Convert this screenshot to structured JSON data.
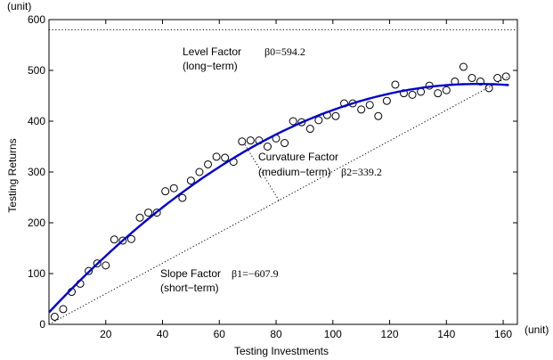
{
  "chart_data": {
    "type": "scatter",
    "title": "",
    "xlabel": "Testing Investments",
    "ylabel": "Testing Returns",
    "x_unit": "(unit)",
    "y_unit": "(unit)",
    "xlim": [
      0,
      165
    ],
    "ylim": [
      0,
      600
    ],
    "xticks": [
      20,
      40,
      60,
      80,
      100,
      120,
      140,
      160
    ],
    "yticks": [
      0,
      100,
      200,
      300,
      400,
      500,
      600
    ],
    "grid": false,
    "points": {
      "x": [
        2,
        5,
        8,
        11,
        14,
        17,
        20,
        23,
        26,
        29,
        32,
        35,
        38,
        41,
        44,
        47,
        50,
        53,
        56,
        59,
        62,
        65,
        68,
        71,
        74,
        77,
        80,
        83,
        86,
        89,
        92,
        95,
        98,
        101,
        104,
        107,
        110,
        113,
        116,
        119,
        122,
        125,
        128,
        131,
        134,
        137,
        140,
        143,
        146,
        149,
        152,
        155,
        158,
        161
      ],
      "y": [
        15,
        30,
        64,
        80,
        105,
        120,
        116,
        167,
        165,
        168,
        210,
        220,
        220,
        262,
        268,
        249,
        283,
        300,
        315,
        330,
        328,
        320,
        360,
        362,
        362,
        350,
        366,
        357,
        400,
        398,
        385,
        402,
        412,
        410,
        435,
        435,
        423,
        432,
        410,
        440,
        472,
        455,
        452,
        458,
        470,
        455,
        461,
        478,
        507,
        485,
        478,
        465,
        485,
        488
      ]
    },
    "fit_curve": {
      "color": "#0000cc"
    },
    "reference_lines": {
      "level_value": 580,
      "slope_line": {
        "from": [
          0,
          0
        ],
        "to": [
          162,
          488
        ]
      },
      "curvature_line": {
        "from": [
          81,
          244
        ],
        "to": [
          69,
          354
        ]
      }
    },
    "annotations": {
      "level_name": "Level Factor",
      "level_symbol": "β0=594.2",
      "level_term": "(long−term)",
      "curvature_name": "Curvature Factor",
      "curvature_term": "(medium−term)",
      "curvature_symbol": "β2=339.2",
      "slope_name": "Slope Factor",
      "slope_symbol": "β1=−607.9",
      "slope_term": "(short−term)"
    }
  }
}
